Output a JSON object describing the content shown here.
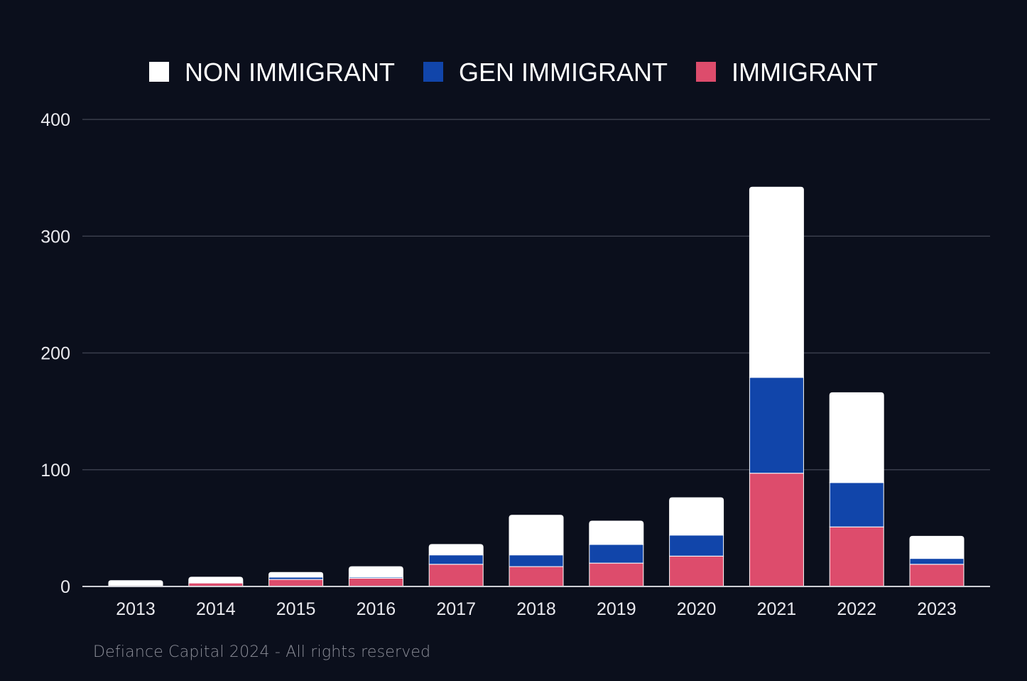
{
  "chart_data": {
    "type": "bar",
    "stacked": true,
    "title": "",
    "xlabel": "",
    "ylabel": "",
    "ylim": [
      0,
      400
    ],
    "yticks": [
      0,
      100,
      200,
      300,
      400
    ],
    "grid": true,
    "legend_position": "top-center",
    "categories": [
      "2013",
      "2014",
      "2015",
      "2016",
      "2017",
      "2018",
      "2019",
      "2020",
      "2021",
      "2022",
      "2023"
    ],
    "series": [
      {
        "name": "IMMIGRANT",
        "color": "#dd4c6c",
        "values": [
          1,
          3,
          6,
          7,
          19,
          17,
          20,
          26,
          97,
          51,
          19
        ]
      },
      {
        "name": "GEN IMMIGRANT",
        "color": "#1145aa",
        "values": [
          0,
          0,
          2,
          1,
          8,
          10,
          16,
          18,
          82,
          38,
          5
        ]
      },
      {
        "name": "NON IMMIGRANT",
        "color": "#ffffff",
        "values": [
          4,
          5,
          4,
          9,
          9,
          34,
          20,
          32,
          163,
          77,
          19
        ]
      }
    ],
    "legend_order": [
      "NON IMMIGRANT",
      "GEN IMMIGRANT",
      "IMMIGRANT"
    ]
  },
  "footer": {
    "text": "Defiance Capital 2024 - All rights reserved"
  }
}
